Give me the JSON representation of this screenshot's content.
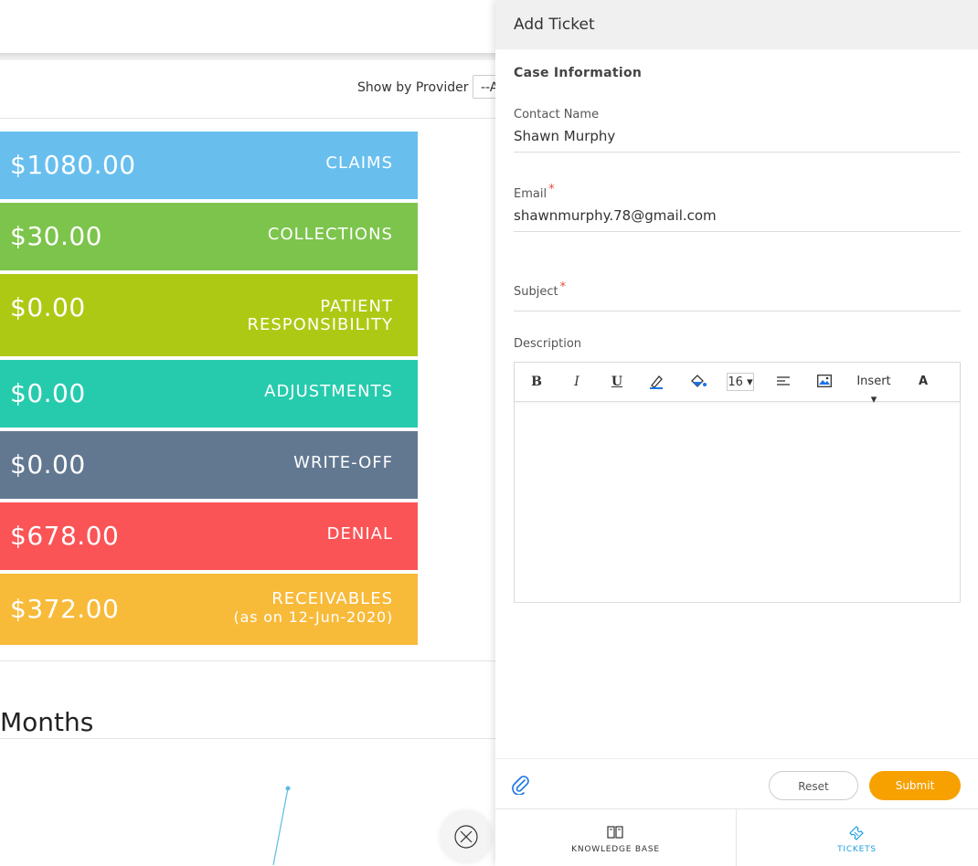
{
  "filter": {
    "label": "Show by Provider",
    "selected": "--A"
  },
  "tiles": [
    {
      "amount": "$1080.00",
      "label": "CLAIMS",
      "sub": "",
      "color": "#68bfee"
    },
    {
      "amount": "$30.00",
      "label": "COLLECTIONS",
      "sub": "",
      "color": "#7cc44b"
    },
    {
      "amount": "$0.00",
      "label": "PATIENT",
      "label2": "RESPONSIBILITY",
      "sub": "",
      "color": "#aec913"
    },
    {
      "amount": "$0.00",
      "label": "ADJUSTMENTS",
      "sub": "",
      "color": "#26cbad"
    },
    {
      "amount": "$0.00",
      "label": "WRITE-OFF",
      "sub": "",
      "color": "#627890"
    },
    {
      "amount": "$678.00",
      "label": "DENIAL",
      "sub": "",
      "color": "#fb5456"
    },
    {
      "amount": "$372.00",
      "label": "RECEIVABLES",
      "sub": "(as on 12-Jun-2020)",
      "color": "#f8ba39"
    }
  ],
  "section": {
    "title": "Months"
  },
  "panel": {
    "title": "Add Ticket",
    "section_title": "Case Information",
    "contact": {
      "label": "Contact Name",
      "value": "Shawn Murphy"
    },
    "email": {
      "label": "Email",
      "required": "*",
      "value": "shawnmurphy.78@gmail.com"
    },
    "subject": {
      "label": "Subject",
      "required": "*",
      "value": ""
    },
    "description": {
      "label": "Description"
    },
    "toolbar": {
      "bold": "B",
      "italic": "I",
      "underline": "U",
      "font_size": "16",
      "insert": "Insert",
      "clear": "A"
    },
    "reset_label": "Reset",
    "submit_label": "Submit",
    "accent": "#f7a100"
  },
  "bottom_tabs": [
    {
      "label": "KNOWLEDGE BASE",
      "icon": "book-icon",
      "active": false
    },
    {
      "label": "TICKETS",
      "icon": "ticket-icon",
      "active": true
    }
  ]
}
